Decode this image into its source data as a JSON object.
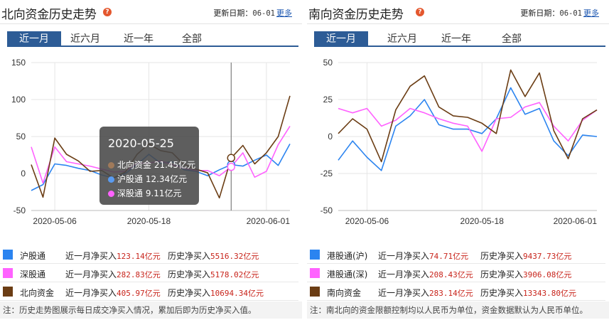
{
  "panels": [
    {
      "title": "北向资金历史走势",
      "update_label": "更新日期：",
      "update_value": "06-01",
      "more": "更多",
      "tabs": [
        "近一月",
        "近六月",
        "近一年",
        "全部"
      ],
      "active_tab": 0,
      "legend": [
        {
          "name": "沪股通",
          "color": "#2b84f0",
          "month_label": "近一月净买入",
          "month_value": "123.14亿元",
          "hist_label": "历史净买入",
          "hist_value": "5516.32亿元"
        },
        {
          "name": "深股通",
          "color": "#ff62ff",
          "month_label": "近一月净买入",
          "month_value": "282.83亿元",
          "hist_label": "历史净买入",
          "hist_value": "5178.02亿元"
        },
        {
          "name": "北向资金",
          "color": "#6b3d14",
          "month_label": "近一月净买入",
          "month_value": "405.97亿元",
          "hist_label": "历史净买入",
          "hist_value": "10694.34亿元"
        }
      ],
      "note": "注：历史走势图展示每日成交净买入情况，累加后即为历史净买入值。",
      "tooltip": {
        "date": "2020-05-25",
        "rows": [
          {
            "label": "北向资金 21.45亿元",
            "color": "#a07a5a"
          },
          {
            "label": "沪股通 12.34亿元",
            "color": "#5a9bf0"
          },
          {
            "label": "深股通 9.11亿元",
            "color": "#ff62ff"
          }
        ]
      }
    },
    {
      "title": "南向资金历史走势",
      "update_label": "更新日期：",
      "update_value": "06-01",
      "more": "更多",
      "tabs": [
        "近一月",
        "近六月",
        "近一年",
        "全部"
      ],
      "active_tab": 0,
      "legend": [
        {
          "name": "港股通(沪)",
          "color": "#2b84f0",
          "month_label": "近一月净买入",
          "month_value": "74.71亿元",
          "hist_label": "历史净买入",
          "hist_value": "9437.73亿元"
        },
        {
          "name": "港股通(深)",
          "color": "#ff62ff",
          "month_label": "近一月净买入",
          "month_value": "208.43亿元",
          "hist_label": "历史净买入",
          "hist_value": "3906.08亿元"
        },
        {
          "name": "南向资金",
          "color": "#6b3d14",
          "month_label": "近一月净买入",
          "month_value": "283.14亿元",
          "hist_label": "历史净买入",
          "hist_value": "13343.80亿元"
        }
      ],
      "note": "注：南北向的资金限额控制均以人民币为单位，资金数据默认为人民币单位。"
    }
  ],
  "chart_data": [
    {
      "type": "line",
      "ylim": [
        -50,
        150
      ],
      "y_ticks": [
        -50,
        0,
        50,
        100,
        150
      ],
      "x_tick_labels": [
        "2020-05-06",
        "2020-05-18",
        "2020-06-01"
      ],
      "x_tick_index": [
        2,
        10,
        20
      ],
      "highlight_index": 17,
      "series": [
        {
          "name": "沪股通",
          "color": "#2b84f0",
          "values": [
            -23,
            -15,
            13,
            11,
            7,
            4,
            -2,
            -6,
            0,
            12,
            26,
            14,
            16,
            5,
            3,
            -3,
            5,
            12,
            10,
            18,
            25,
            11,
            40
          ]
        },
        {
          "name": "深股通",
          "color": "#ff62ff",
          "values": [
            36,
            -13,
            36,
            16,
            13,
            10,
            6,
            2,
            3,
            14,
            14,
            17,
            12,
            7,
            4,
            4,
            -3,
            9,
            28,
            -5,
            3,
            39,
            64
          ]
        },
        {
          "name": "北向资金",
          "color": "#6b3d14",
          "values": [
            12,
            -32,
            48,
            26,
            17,
            3,
            4,
            -6,
            2,
            26,
            40,
            31,
            28,
            12,
            6,
            1,
            -33,
            21,
            38,
            13,
            28,
            50,
            105
          ]
        }
      ]
    },
    {
      "type": "line",
      "ylim": [
        -50,
        50
      ],
      "y_ticks": [
        -50,
        -25,
        0,
        25,
        50
      ],
      "x_tick_labels": [
        "2020-05-06",
        "2020-05-18",
        "2020-06-01"
      ],
      "x_tick_index": [
        2,
        10,
        20
      ],
      "series": [
        {
          "name": "港股通(沪)",
          "color": "#2b84f0",
          "values": [
            -16,
            -3,
            -14,
            -23,
            7,
            14,
            25,
            8,
            5,
            5,
            2,
            12,
            33,
            15,
            19,
            -3,
            -13,
            1,
            0
          ]
        },
        {
          "name": "港股通(深)",
          "color": "#ff62ff",
          "values": [
            19,
            16,
            19,
            7,
            11,
            19,
            16,
            12,
            9,
            7,
            -10,
            12,
            13,
            20,
            23,
            7,
            -3,
            11,
            18
          ]
        },
        {
          "name": "南向资金",
          "color": "#6b3d14",
          "values": [
            2,
            12,
            5,
            -17,
            18,
            34,
            41,
            20,
            14,
            13,
            9,
            2,
            45,
            27,
            43,
            4,
            -15,
            12,
            18
          ]
        }
      ]
    }
  ]
}
